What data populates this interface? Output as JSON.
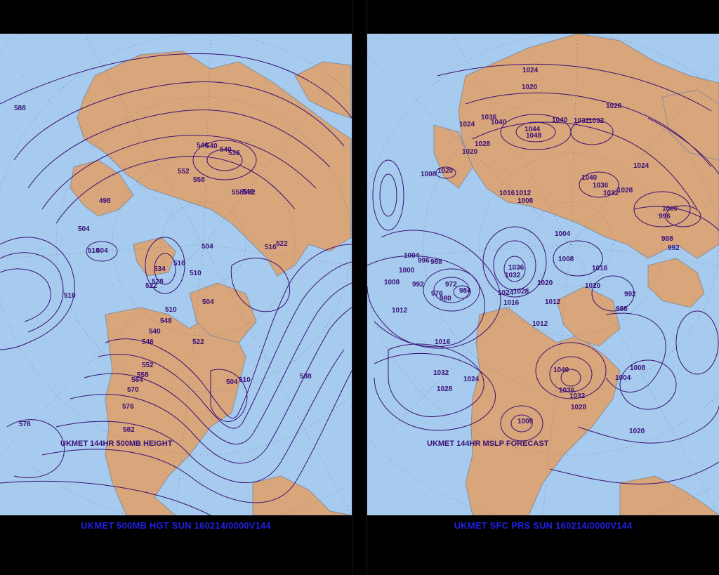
{
  "left_panel": {
    "inner_title": "UKMET 144HR 500MB HEIGHT",
    "caption": "UKMET 500MB HGT SUN 160214/0000V144",
    "contour_labels": [
      "588",
      "498",
      "504",
      "510",
      "504",
      "510",
      "534",
      "528",
      "516",
      "510",
      "522",
      "546",
      "540",
      "536",
      "552",
      "558",
      "540",
      "546",
      "558",
      "552",
      "504",
      "516",
      "522",
      "504",
      "510",
      "548",
      "540",
      "546",
      "552",
      "558",
      "564",
      "570",
      "576",
      "582",
      "576",
      "522",
      "504",
      "510",
      "588"
    ]
  },
  "right_panel": {
    "inner_title": "UKMET 144HR MSLP FORECAST",
    "caption": "UKMET SFC PRS SUN 160214/0000V144",
    "contour_labels": [
      "1024",
      "1020",
      "1028",
      "1036",
      "1040",
      "1044",
      "1048",
      "1040",
      "1032",
      "1032",
      "1024",
      "1028",
      "1020",
      "1008",
      "1020",
      "1040",
      "1036",
      "1032",
      "1028",
      "1024",
      "1016",
      "1012",
      "1008",
      "1004",
      "1000",
      "996",
      "988",
      "992",
      "1004",
      "996",
      "988",
      "1000",
      "1008",
      "992",
      "972",
      "976",
      "984",
      "980",
      "1012",
      "1036",
      "1032",
      "1028",
      "1024",
      "1020",
      "1016",
      "1012",
      "1008",
      "1016",
      "1020",
      "992",
      "988",
      "1012",
      "1016",
      "1032",
      "1028",
      "1024",
      "1040",
      "1036",
      "1032",
      "1028",
      "1008",
      "1004",
      "1008",
      "1020"
    ]
  },
  "colors": {
    "ocean": "#a6cbee",
    "land": "#d9a57a",
    "contour": "#3a1078",
    "caption": "#2020e0"
  }
}
